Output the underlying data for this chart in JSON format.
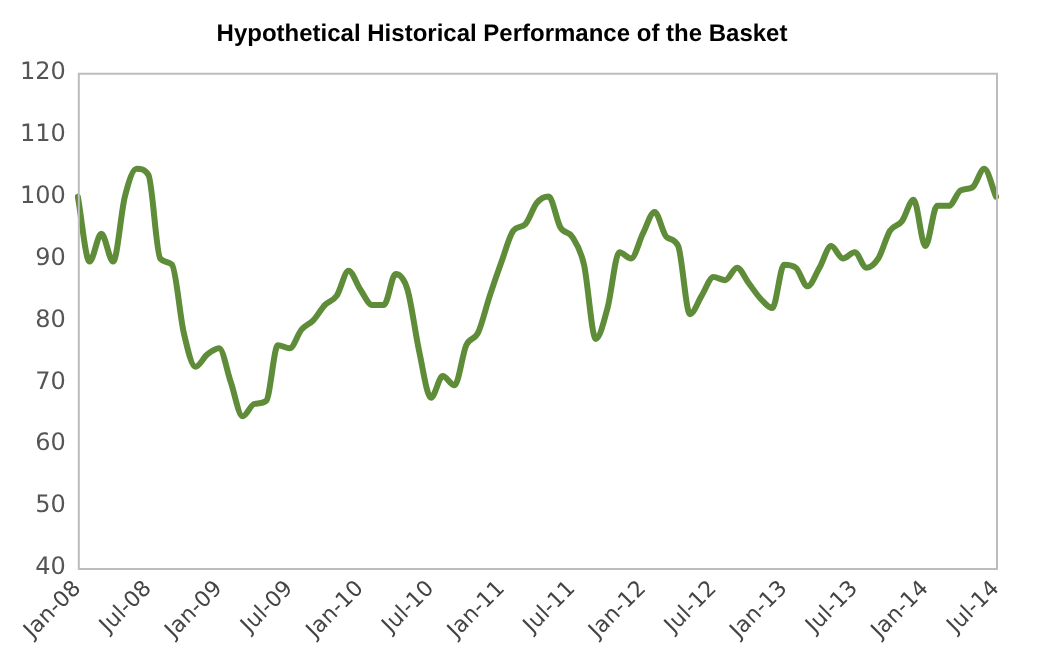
{
  "chart_data": {
    "type": "line",
    "title": "Hypothetical Historical Performance of the Basket",
    "categories": [
      "Jan-08",
      null,
      null,
      null,
      null,
      null,
      "Jul-08",
      null,
      null,
      null,
      null,
      null,
      "Jan-09",
      null,
      null,
      null,
      null,
      null,
      "Jul-09",
      null,
      null,
      null,
      null,
      null,
      "Jan-10",
      null,
      null,
      null,
      null,
      null,
      "Jul-10",
      null,
      null,
      null,
      null,
      null,
      "Jan-11",
      null,
      null,
      null,
      null,
      null,
      "Jul-11",
      null,
      null,
      null,
      null,
      null,
      "Jan-12",
      null,
      null,
      null,
      null,
      null,
      "Jul-12",
      null,
      null,
      null,
      null,
      null,
      "Jan-13",
      null,
      null,
      null,
      null,
      null,
      "Jul-13",
      null,
      null,
      null,
      null,
      null,
      "Jan-14",
      null,
      null,
      null,
      null,
      null,
      "Jul-14"
    ],
    "series": [
      {
        "color": "#5e8c38",
        "values": [
          100,
          89.5,
          94,
          89.5,
          100,
          104.5,
          103.5,
          90,
          89,
          78,
          72.5,
          74.5,
          75.5,
          70,
          64.5,
          66.5,
          67,
          76,
          75.5,
          78.5,
          80,
          82.5,
          84,
          88,
          85,
          82.5,
          82.5,
          87.5,
          85,
          75,
          67.5,
          71,
          69.5,
          76,
          78,
          84,
          89.5,
          94.5,
          95.5,
          99,
          100,
          95,
          93.5,
          89,
          77,
          82,
          91,
          90,
          94,
          97.5,
          93.5,
          92,
          81,
          84,
          87,
          86.5,
          88.5,
          86,
          83.5,
          82,
          89,
          88.5,
          85.5,
          88.5,
          92,
          90,
          91,
          88.5,
          90,
          94.5,
          96,
          99.5,
          92,
          98.5,
          98.5,
          101,
          101.5,
          104.5,
          100
        ]
      }
    ],
    "ylim": [
      40,
      120
    ],
    "yticks": [
      40,
      50,
      60,
      70,
      80,
      90,
      100,
      110,
      120
    ],
    "grid": false,
    "legend": false,
    "marker": "none",
    "line_style": "solid"
  }
}
